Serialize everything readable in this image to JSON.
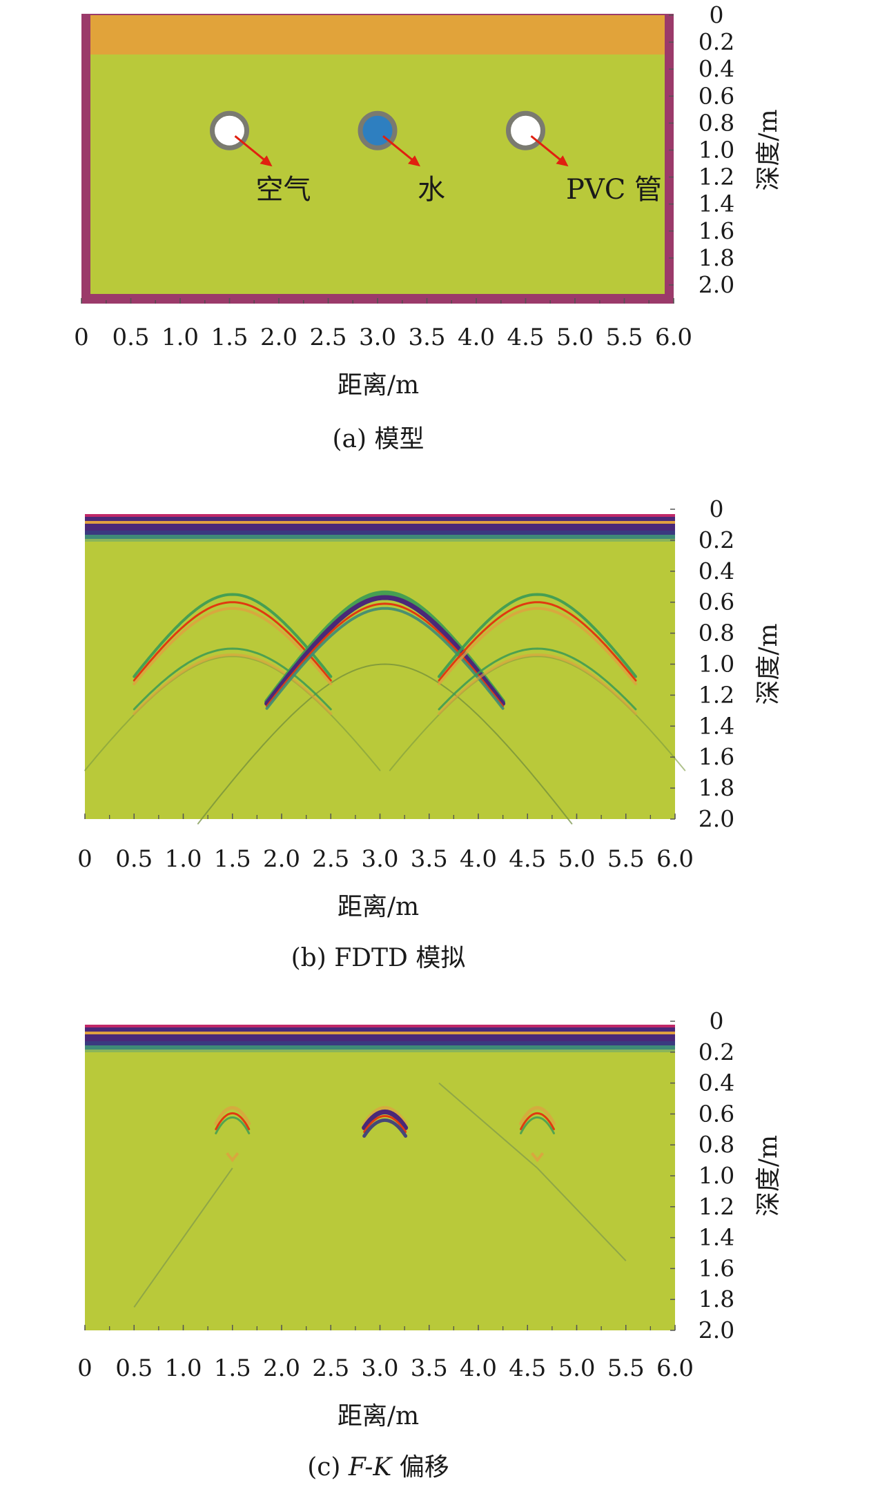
{
  "colors": {
    "background_green": "#B9C93A",
    "topsoil_orange": "#E1A33A",
    "border_magenta": "#9B3A6A",
    "water_blue": "#2E7FC0",
    "pipe_gray": "#7A7A70",
    "arrow_red": "#E02010",
    "band_purple": "#4A2878",
    "band_pink": "#C02868",
    "band_teal": "#3F8A77",
    "hyperbola_green": "#3A9A55",
    "hyperbola_red": "#E03A10",
    "hyperbola_orange": "#E0A040"
  },
  "chart_data": [
    {
      "type": "heatmap",
      "panel": "model",
      "caption": "(a) 模型",
      "xlabel": "距离/m",
      "ylabel": "深度/m",
      "xlim": [
        0,
        6.0
      ],
      "ylim": [
        0,
        2.2
      ],
      "x_ticks": [
        "0",
        "0.5",
        "1.0",
        "1.5",
        "2.0",
        "2.5",
        "3.0",
        "3.5",
        "4.0",
        "4.5",
        "5.0",
        "5.5",
        "6.0"
      ],
      "y_ticks": [
        "0",
        "0.2",
        "0.4",
        "0.6",
        "0.8",
        "1.0",
        "1.2",
        "1.4",
        "1.6",
        "1.8",
        "2.0"
      ],
      "layers": [
        {
          "fill": "topsoil",
          "from_depth": 0,
          "to_depth": 0.3
        },
        {
          "fill": "soil",
          "from_depth": 0.3,
          "to_depth": 2.05
        }
      ],
      "targets": [
        {
          "label": "空气",
          "fill": "air",
          "x": 1.5,
          "depth": 0.88,
          "radius": 0.13
        },
        {
          "label": "水",
          "fill": "water",
          "x": 3.0,
          "depth": 0.88,
          "radius": 0.13
        },
        {
          "label": "PVC 管",
          "fill": "air",
          "x": 4.5,
          "depth": 0.88,
          "radius": 0.13
        }
      ]
    },
    {
      "type": "heatmap",
      "panel": "fdtd",
      "caption": "(b) FDTD 模拟",
      "xlabel": "距离/m",
      "ylabel": "深度/m",
      "xlim": [
        0,
        6.0
      ],
      "ylim": [
        0,
        2.0
      ],
      "x_ticks": [
        "0",
        "0.5",
        "1.0",
        "1.5",
        "2.0",
        "2.5",
        "3.0",
        "3.5",
        "4.0",
        "4.5",
        "5.0",
        "5.5",
        "6.0"
      ],
      "y_ticks": [
        "0",
        "0.2",
        "0.4",
        "0.6",
        "0.8",
        "1.0",
        "1.2",
        "1.4",
        "1.6",
        "1.8",
        "2.0"
      ],
      "hyperbolas": [
        {
          "x": 1.5,
          "apex_depth": 0.6,
          "half_width": 1.0
        },
        {
          "x": 1.5,
          "apex_depth": 0.9,
          "half_width": 1.0
        },
        {
          "x": 3.05,
          "apex_depth": 0.6,
          "half_width": 1.2
        },
        {
          "x": 4.6,
          "apex_depth": 0.6,
          "half_width": 1.0
        },
        {
          "x": 4.6,
          "apex_depth": 0.9,
          "half_width": 1.0
        }
      ]
    },
    {
      "type": "heatmap",
      "panel": "fk",
      "caption_prefix": "(c) ",
      "caption_italic": "F-K",
      "caption_suffix": " 偏移",
      "xlabel": "距离/m",
      "ylabel": "深度/m",
      "xlim": [
        0,
        6.0
      ],
      "ylim": [
        0,
        2.0
      ],
      "x_ticks": [
        "0",
        "0.5",
        "1.0",
        "1.5",
        "2.0",
        "2.5",
        "3.0",
        "3.5",
        "4.0",
        "4.5",
        "5.0",
        "5.5",
        "6.0"
      ],
      "y_ticks": [
        "0",
        "0.2",
        "0.4",
        "0.6",
        "0.8",
        "1.0",
        "1.2",
        "1.4",
        "1.6",
        "1.8",
        "2.0"
      ],
      "focused_targets": [
        {
          "x": 1.5,
          "depth": 0.6
        },
        {
          "x": 3.05,
          "depth": 0.6
        },
        {
          "x": 4.6,
          "depth": 0.6
        }
      ]
    }
  ]
}
